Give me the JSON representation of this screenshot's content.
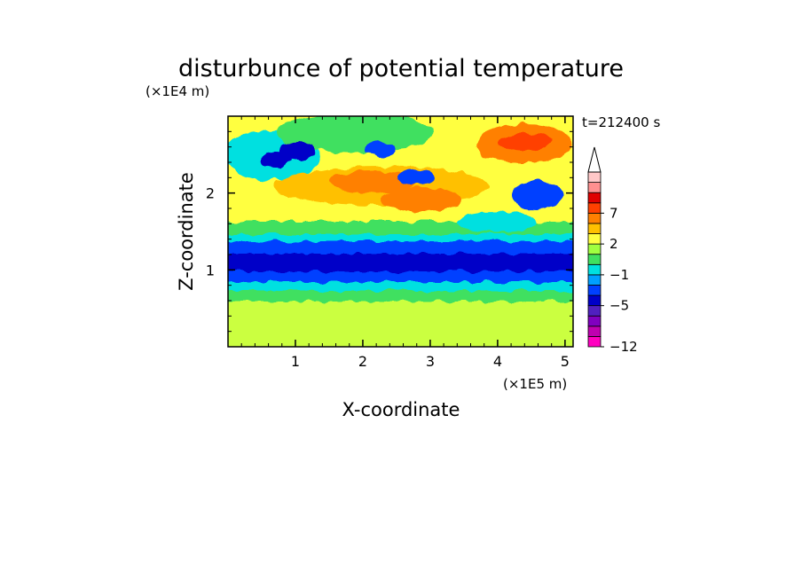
{
  "chart_data": {
    "type": "heatmap",
    "title": "disturbunce of potential temperature",
    "time_label": "t=212400 s",
    "xlabel": "X-coordinate",
    "ylabel": "Z-coordinate",
    "x_unit": "(×1E5 m)",
    "y_unit": "(×1E4 m)",
    "xlim": [
      0,
      5.12
    ],
    "ylim": [
      0,
      3.0
    ],
    "x_ticks": [
      1,
      2,
      3,
      4,
      5
    ],
    "y_ticks": [
      1,
      2
    ],
    "legend": {
      "placement": "right",
      "extend": "max",
      "levels": [
        -12,
        -11,
        -9,
        -7,
        -5,
        -4,
        -3,
        -1,
        0,
        1,
        2,
        4,
        5,
        7,
        8,
        9
      ],
      "colors": [
        "#ff00c0",
        "#c000b0",
        "#8000c0",
        "#5020c0",
        "#0000c8",
        "#0040ff",
        "#00a0ff",
        "#00e0e0",
        "#40e060",
        "#a0ff40",
        "#ffff40",
        "#ffc000",
        "#ff8000",
        "#ff4000",
        "#e00000",
        "#ff9090",
        "#ffc8c8"
      ],
      "labels": [
        "7",
        "2",
        "−1",
        "−5",
        "−12"
      ],
      "label_values": [
        7,
        2,
        -1,
        -5,
        -12
      ]
    }
  }
}
